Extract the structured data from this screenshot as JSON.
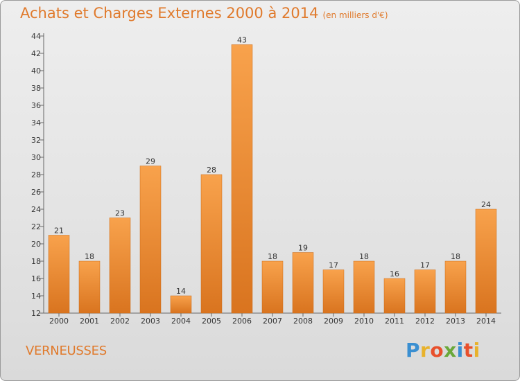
{
  "title": "Achats et Charges Externes 2000 à 2014",
  "unit": "(en milliers d'€)",
  "commune": "VERNEUSSES",
  "logo": {
    "text": "Proxiti",
    "letters": [
      {
        "ch": "P",
        "color": "#3a8fd1"
      },
      {
        "ch": "r",
        "color": "#e8b22c"
      },
      {
        "ch": "o",
        "color": "#e8502c"
      },
      {
        "ch": "x",
        "color": "#6aa83a"
      },
      {
        "ch": "i",
        "color": "#3a8fd1"
      },
      {
        "ch": "t",
        "color": "#e8502c"
      },
      {
        "ch": "i",
        "color": "#e8b22c"
      }
    ]
  },
  "colors": {
    "bar_light": "#f8a24c",
    "bar_dark": "#d9741f",
    "title": "#e07a2c"
  },
  "chart_data": {
    "type": "bar",
    "title": "Achats et Charges Externes 2000 à 2014",
    "categories": [
      "2000",
      "2001",
      "2002",
      "2003",
      "2004",
      "2005",
      "2006",
      "2007",
      "2008",
      "2009",
      "2010",
      "2011",
      "2012",
      "2013",
      "2014"
    ],
    "values": [
      21,
      18,
      23,
      29,
      14,
      28,
      43,
      18,
      19,
      17,
      18,
      16,
      17,
      18,
      24
    ],
    "ylim": [
      12,
      44
    ],
    "yticks": [
      12,
      14,
      16,
      18,
      20,
      22,
      24,
      26,
      28,
      30,
      32,
      34,
      36,
      38,
      40,
      42,
      44
    ],
    "grid": false,
    "xlabel": "",
    "ylabel": ""
  }
}
